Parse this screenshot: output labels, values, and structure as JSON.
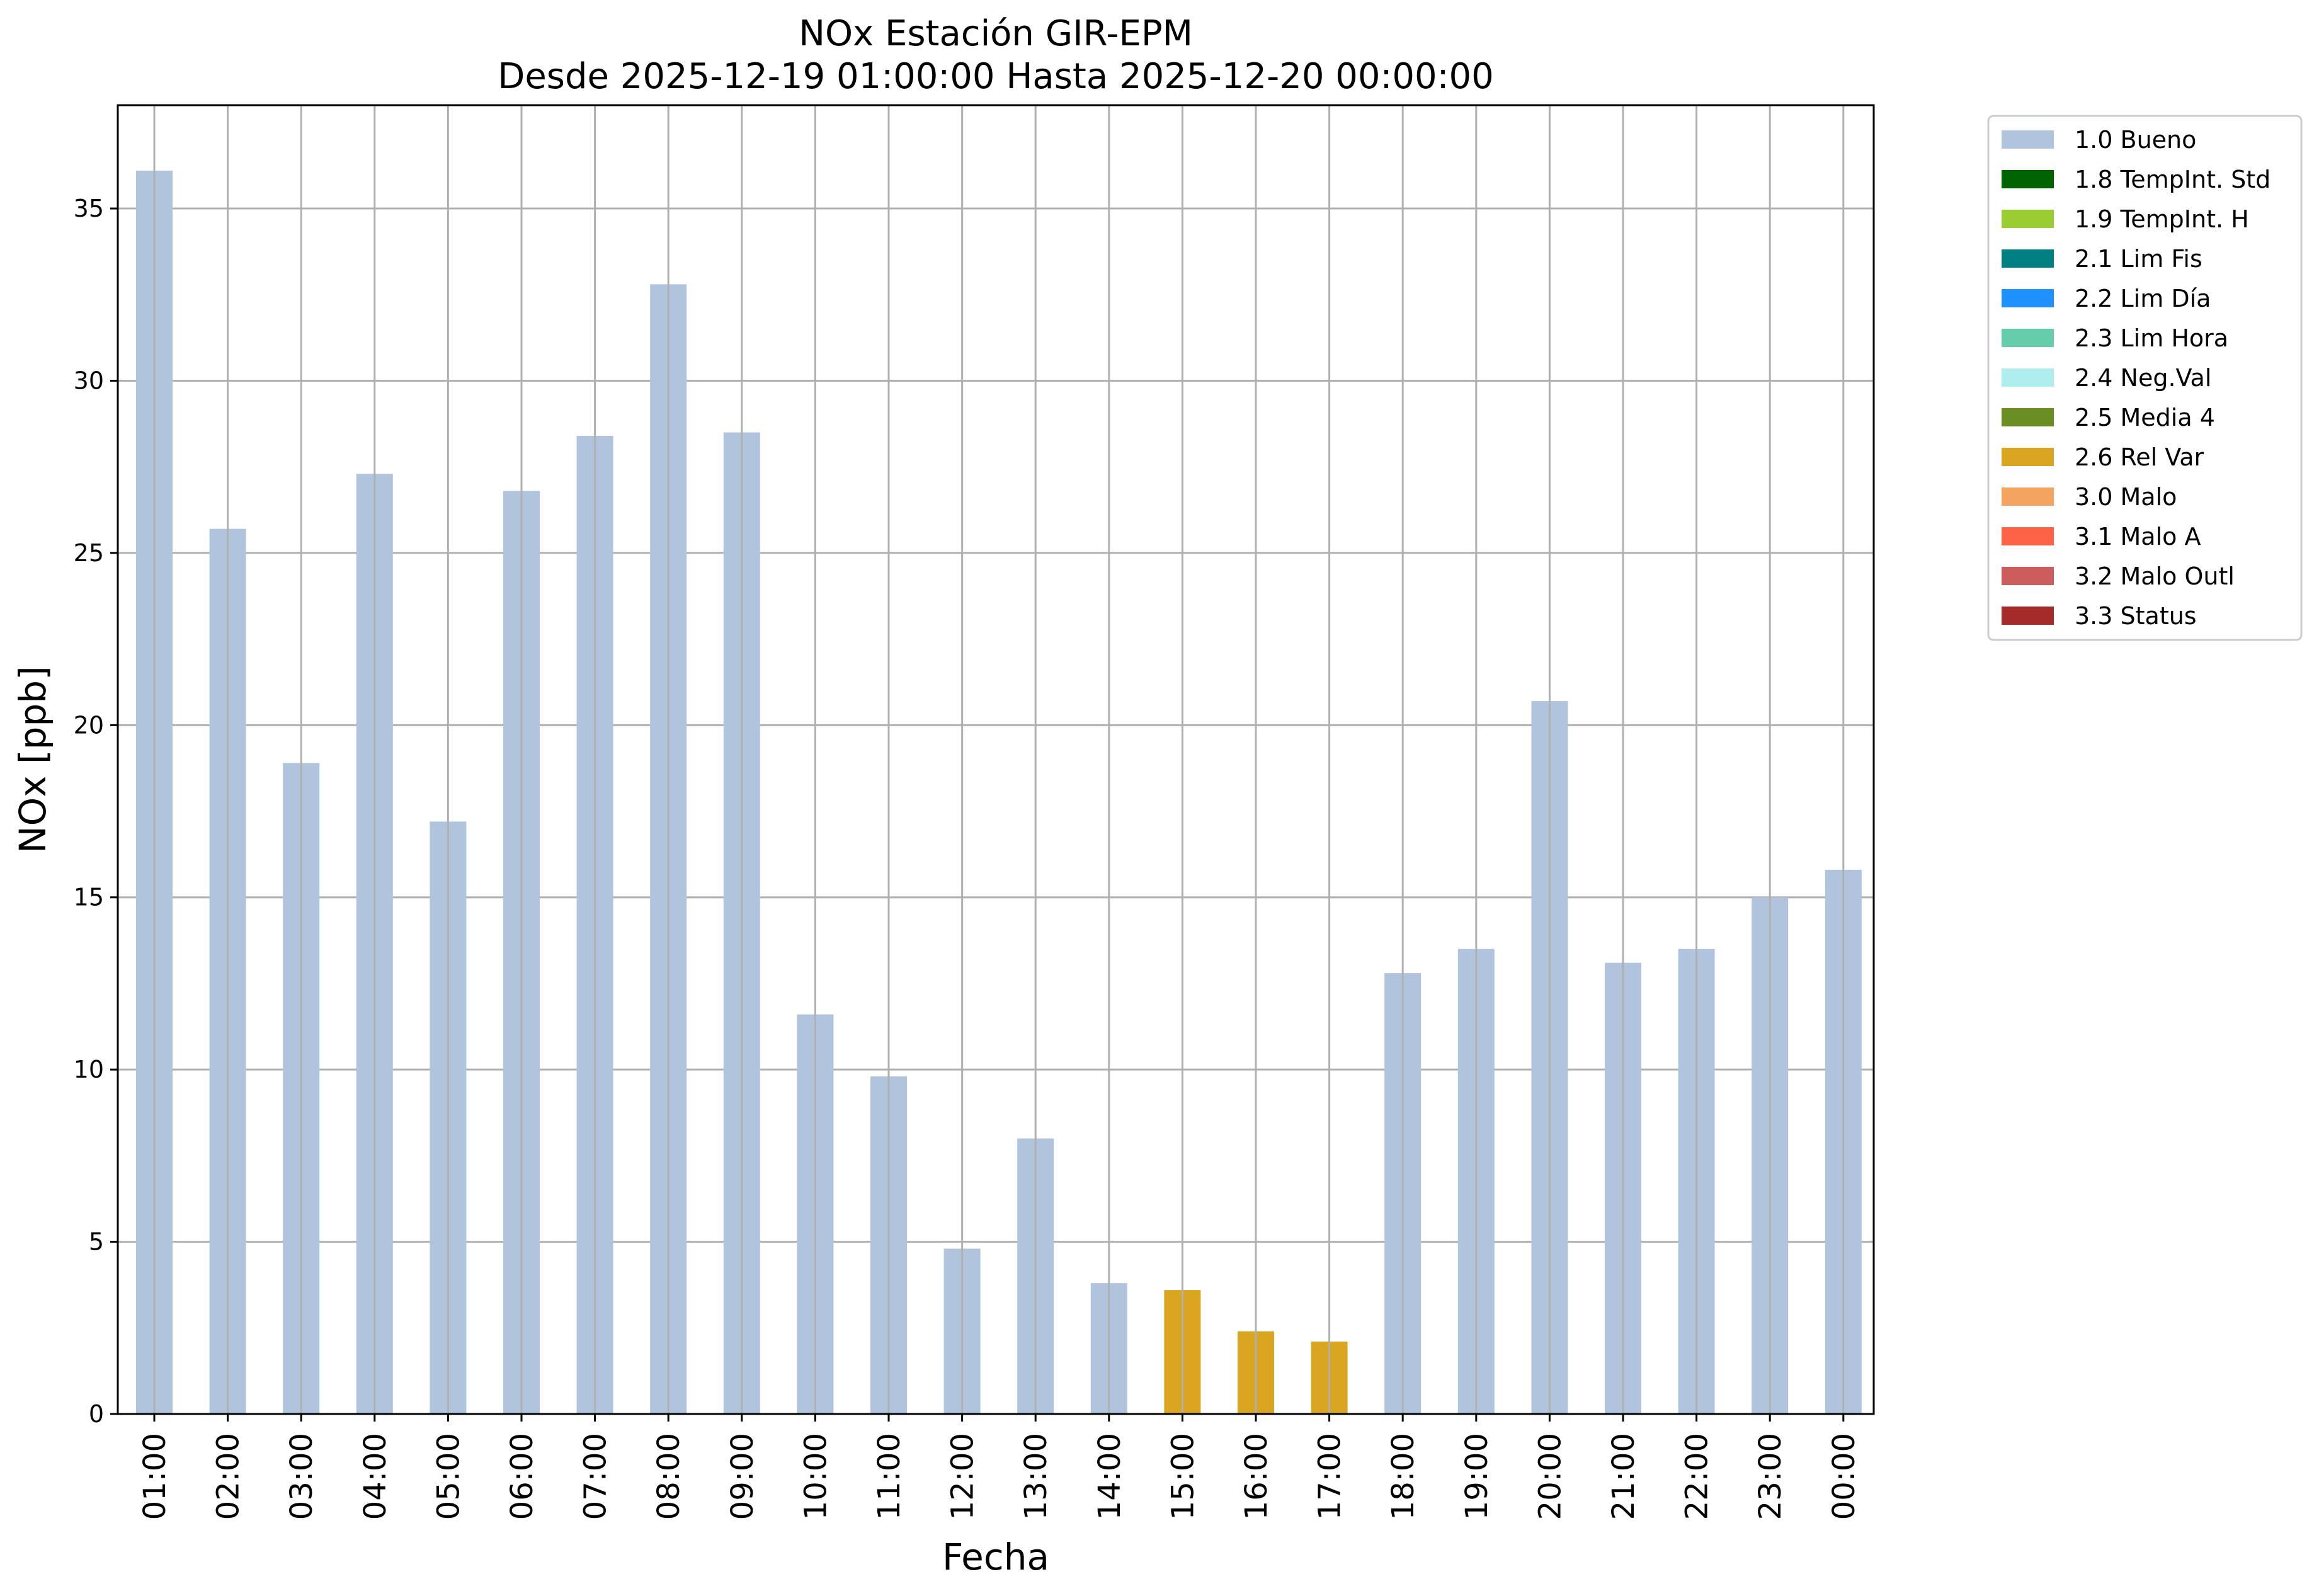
{
  "chart_data": {
    "type": "bar",
    "title_line1": "NOx Estación GIR-EPM",
    "title_line2": "Desde 2025-12-19 01:00:00 Hasta 2025-12-20 00:00:00",
    "xlabel": "Fecha",
    "ylabel": "NOx [ppb]",
    "ylim": [
      0,
      38
    ],
    "yticks": [
      0,
      5,
      10,
      15,
      20,
      25,
      30,
      35
    ],
    "grid": true,
    "legend_position": "outside top-right",
    "categories": [
      "01:00",
      "02:00",
      "03:00",
      "04:00",
      "05:00",
      "06:00",
      "07:00",
      "08:00",
      "09:00",
      "10:00",
      "11:00",
      "12:00",
      "13:00",
      "14:00",
      "15:00",
      "16:00",
      "17:00",
      "18:00",
      "19:00",
      "20:00",
      "21:00",
      "22:00",
      "23:00",
      "00:00"
    ],
    "values": [
      36.1,
      25.7,
      18.9,
      27.3,
      17.2,
      26.8,
      28.4,
      32.8,
      28.5,
      11.6,
      9.8,
      4.8,
      8.0,
      3.8,
      3.6,
      2.4,
      2.1,
      12.8,
      13.5,
      20.7,
      13.1,
      13.5,
      15.0,
      15.8
    ],
    "flags": [
      "1.0 Bueno",
      "1.0 Bueno",
      "1.0 Bueno",
      "1.0 Bueno",
      "1.0 Bueno",
      "1.0 Bueno",
      "1.0 Bueno",
      "1.0 Bueno",
      "1.0 Bueno",
      "1.0 Bueno",
      "1.0 Bueno",
      "1.0 Bueno",
      "1.0 Bueno",
      "1.0 Bueno",
      "2.6 Rel Var",
      "2.6 Rel Var",
      "2.6 Rel Var",
      "1.0 Bueno",
      "1.0 Bueno",
      "1.0 Bueno",
      "1.0 Bueno",
      "1.0 Bueno",
      "1.0 Bueno",
      "1.0 Bueno"
    ],
    "legend": [
      {
        "label": "1.0 Bueno",
        "color": "#b0c4de"
      },
      {
        "label": "1.8 TempInt. Std",
        "color": "#006400"
      },
      {
        "label": "1.9 TempInt. H",
        "color": "#9acd32"
      },
      {
        "label": "2.1 Lim Fis",
        "color": "#008080"
      },
      {
        "label": "2.2 Lim Día",
        "color": "#1e90ff"
      },
      {
        "label": "2.3 Lim Hora",
        "color": "#66cdaa"
      },
      {
        "label": "2.4 Neg.Val",
        "color": "#afeeee"
      },
      {
        "label": "2.5 Media 4",
        "color": "#6b8e23"
      },
      {
        "label": "2.6 Rel Var",
        "color": "#daa520"
      },
      {
        "label": "3.0 Malo",
        "color": "#f4a460"
      },
      {
        "label": "3.1 Malo A",
        "color": "#ff6347"
      },
      {
        "label": "3.2 Malo Outl",
        "color": "#cd5c5c"
      },
      {
        "label": "3.3 Status",
        "color": "#a52a2a"
      }
    ]
  }
}
